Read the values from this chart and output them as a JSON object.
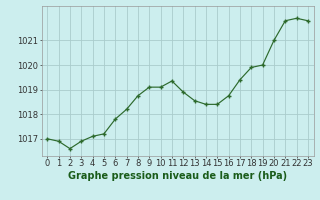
{
  "x": [
    0,
    1,
    2,
    3,
    4,
    5,
    6,
    7,
    8,
    9,
    10,
    11,
    12,
    13,
    14,
    15,
    16,
    17,
    18,
    19,
    20,
    21,
    22,
    23
  ],
  "y": [
    1017.0,
    1016.9,
    1016.6,
    1016.9,
    1017.1,
    1017.2,
    1017.8,
    1018.2,
    1018.75,
    1019.1,
    1019.1,
    1019.35,
    1018.9,
    1018.55,
    1018.4,
    1018.4,
    1018.75,
    1019.4,
    1019.9,
    1020.0,
    1021.0,
    1021.8,
    1021.9,
    1021.8
  ],
  "line_color": "#2d6a2d",
  "marker_color": "#2d6a2d",
  "bg_color": "#cceeee",
  "grid_color": "#aacccc",
  "title": "Graphe pression niveau de la mer (hPa)",
  "ylim_min": 1016.3,
  "ylim_max": 1022.4,
  "yticks": [
    1017,
    1018,
    1019,
    1020,
    1021
  ],
  "xticks": [
    0,
    1,
    2,
    3,
    4,
    5,
    6,
    7,
    8,
    9,
    10,
    11,
    12,
    13,
    14,
    15,
    16,
    17,
    18,
    19,
    20,
    21,
    22,
    23
  ],
  "title_fontsize": 7.0,
  "tick_fontsize": 6.0
}
